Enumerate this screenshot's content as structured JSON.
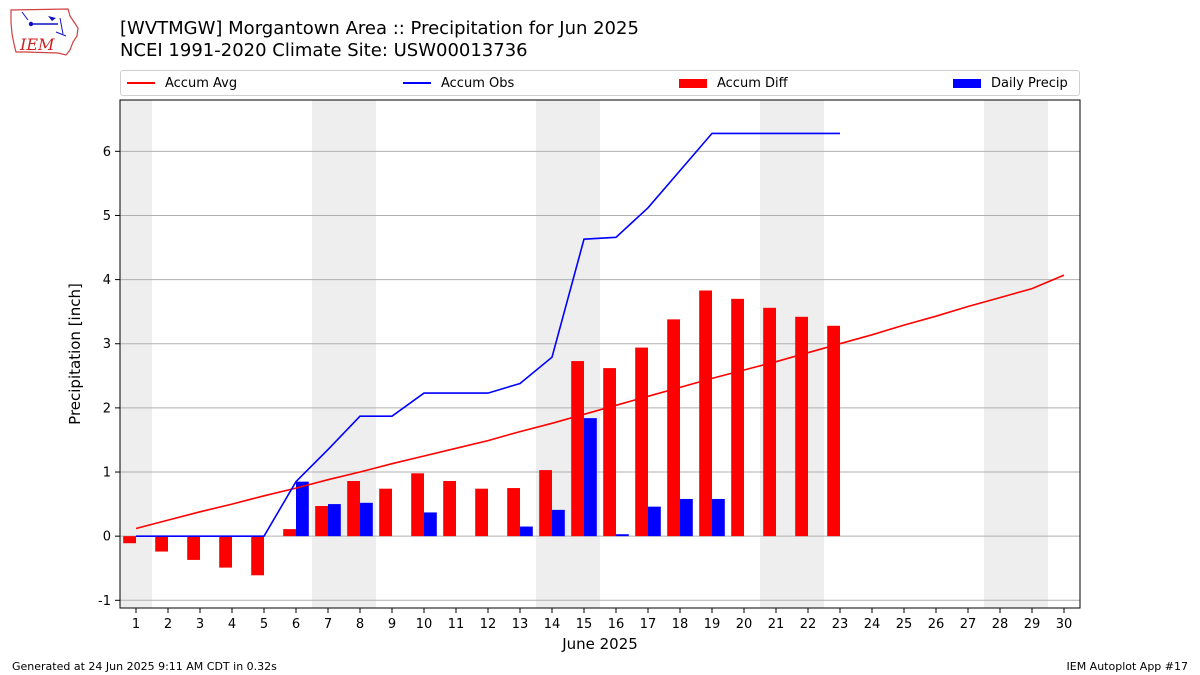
{
  "header": {
    "title_line1": "[WVTMGW] Morgantown Area :: Precipitation for Jun 2025",
    "title_line2": "NCEI 1991-2020 Climate Site: USW00013736",
    "logo_text": "IEM"
  },
  "footer": {
    "left": "Generated at 24 Jun 2025 9:11 AM CDT in 0.32s",
    "right": "IEM Autoplot App #17"
  },
  "colors": {
    "avg": "#ff0000",
    "obs": "#0000ff",
    "diff": "#ff0000",
    "daily": "#0000ff",
    "weekend": "#eeeeee",
    "grid": "#b0b0b0"
  },
  "legend": [
    {
      "label": "Accum Avg",
      "kind": "line",
      "color": "#ff0000"
    },
    {
      "label": "Accum Obs",
      "kind": "line",
      "color": "#0000ff"
    },
    {
      "label": "Accum Diff",
      "kind": "rect",
      "color": "#ff0000"
    },
    {
      "label": "Daily Precip",
      "kind": "rect",
      "color": "#0000ff"
    }
  ],
  "chart_data": {
    "type": "bar",
    "xlabel": "June 2025",
    "ylabel": "Precipitation [inch]",
    "x": [
      1,
      2,
      3,
      4,
      5,
      6,
      7,
      8,
      9,
      10,
      11,
      12,
      13,
      14,
      15,
      16,
      17,
      18,
      19,
      20,
      21,
      22,
      23,
      24,
      25,
      26,
      27,
      28,
      29,
      30
    ],
    "xlim": [
      0.5,
      30.5
    ],
    "ylim": [
      -1.12,
      6.8
    ],
    "yticks": [
      -1,
      0,
      1,
      2,
      3,
      4,
      5,
      6
    ],
    "grid": "horizontal",
    "legend_position": "top",
    "weekend_shading": [
      [
        1,
        1
      ],
      [
        7,
        8
      ],
      [
        14,
        15
      ],
      [
        21,
        22
      ],
      [
        28,
        29
      ]
    ],
    "series": [
      {
        "name": "Accum Avg",
        "type": "line",
        "values": [
          0.12,
          0.25,
          0.38,
          0.5,
          0.63,
          0.75,
          0.88,
          1.0,
          1.13,
          1.25,
          1.37,
          1.49,
          1.63,
          1.76,
          1.9,
          2.04,
          2.18,
          2.32,
          2.46,
          2.59,
          2.72,
          2.86,
          3.0,
          3.14,
          3.29,
          3.43,
          3.58,
          3.72,
          3.86,
          4.07
        ]
      },
      {
        "name": "Accum Obs",
        "type": "line",
        "values": [
          0,
          0,
          0,
          0,
          0,
          0.85,
          1.35,
          1.87,
          1.87,
          2.23,
          2.23,
          2.23,
          2.38,
          2.79,
          4.63,
          4.66,
          5.12,
          5.7,
          6.28,
          6.28,
          6.28,
          6.28,
          6.28,
          null,
          null,
          null,
          null,
          null,
          null,
          null
        ]
      },
      {
        "name": "Accum Diff",
        "type": "bar",
        "values": [
          -0.11,
          -0.24,
          -0.37,
          -0.49,
          -0.61,
          0.11,
          0.47,
          0.86,
          0.74,
          0.98,
          0.86,
          0.74,
          0.75,
          1.03,
          2.73,
          2.62,
          2.94,
          3.38,
          3.83,
          3.7,
          3.56,
          3.42,
          3.28,
          null,
          null,
          null,
          null,
          null,
          null,
          null
        ]
      },
      {
        "name": "Daily Precip",
        "type": "bar",
        "values": [
          0,
          0,
          0,
          0,
          0,
          0.85,
          0.5,
          0.52,
          0,
          0.37,
          0,
          0,
          0.15,
          0.41,
          1.84,
          0.03,
          0.46,
          0.58,
          0.58,
          0,
          0,
          0,
          0,
          null,
          null,
          null,
          null,
          null,
          null,
          null
        ]
      }
    ]
  }
}
